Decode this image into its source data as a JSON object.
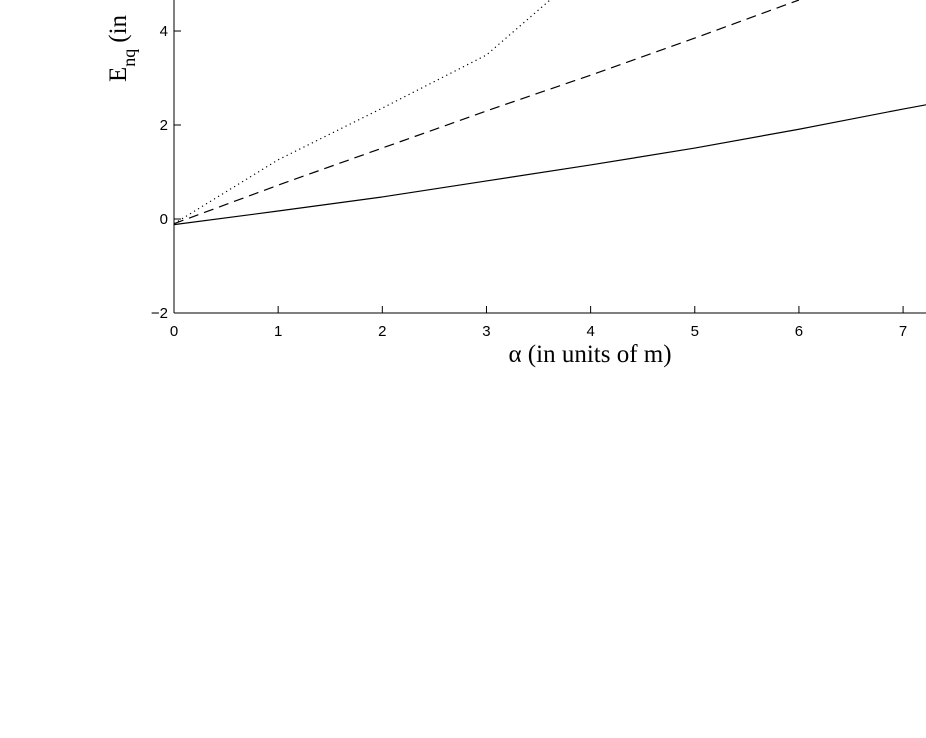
{
  "chart_data": {
    "type": "line",
    "xlabel": "α (in units of m)",
    "ylabel": "E",
    "ylabel_sub": "nq",
    "ylabel_rest": "(in",
    "xlim": [
      0,
      7.22
    ],
    "ylim": [
      -2,
      4.66
    ],
    "xticks": [
      0,
      1,
      2,
      3,
      4,
      5,
      6,
      7
    ],
    "yticks": [
      {
        "value": -2,
        "label": "−2"
      },
      0,
      2,
      4
    ],
    "series": [
      {
        "color": "#000000",
        "dash": "solid",
        "x": [
          0,
          1,
          2,
          3,
          4,
          5,
          6,
          7,
          7.22
        ],
        "values": [
          -0.12,
          0.17,
          0.47,
          0.81,
          1.15,
          1.51,
          1.91,
          2.34,
          2.43
        ]
      },
      {
        "color": "#000000",
        "dash": "dashed",
        "x": [
          0,
          1,
          2,
          3,
          4,
          5,
          6
        ],
        "values": [
          -0.1,
          0.72,
          1.51,
          2.3,
          3.06,
          3.85,
          4.66
        ]
      },
      {
        "color": "#000000",
        "dash": "dotted",
        "x": [
          0,
          1,
          2,
          3,
          3.61
        ],
        "values": [
          -0.1,
          1.26,
          2.36,
          3.49,
          4.66
        ]
      }
    ]
  }
}
